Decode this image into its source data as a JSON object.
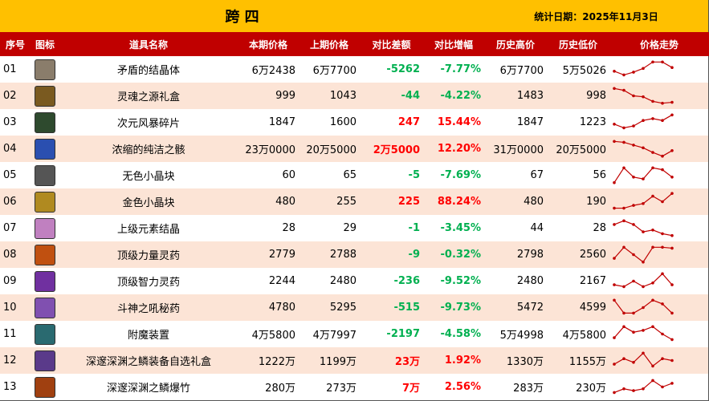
{
  "header": {
    "title": "跨 四",
    "date": "统计日期：2025年11月3日"
  },
  "table": {
    "columns": [
      "序号",
      "图标",
      "道具名称",
      "本期价格",
      "上期价格",
      "对比差额",
      "对比增幅",
      "历史高价",
      "历史低价",
      "价格走势"
    ],
    "rows": [
      [
        "01",
        "矛盾的结晶体",
        "6万2438",
        "6万7700",
        "-5262",
        "-7.77%",
        "6万7700",
        "5万5026"
      ],
      [
        "02",
        "灵魂之源礼盒",
        "999",
        "1043",
        "-44",
        "-4.22%",
        "1483",
        "998"
      ],
      [
        "03",
        "次元风暴碎片",
        "1847",
        "1600",
        "247",
        "15.44%",
        "1847",
        "1223"
      ],
      [
        "04",
        "浓缩的纯洁之骸",
        "23万0000",
        "20万5000",
        "2万5000",
        "12.20%",
        "31万0000",
        "20万5000"
      ],
      [
        "05",
        "无色小晶块",
        "60",
        "65",
        "-5",
        "-7.69%",
        "67",
        "56"
      ],
      [
        "06",
        "金色小晶块",
        "480",
        "255",
        "225",
        "88.24%",
        "480",
        "190"
      ],
      [
        "07",
        "上级元素结晶",
        "28",
        "29",
        "-1",
        "-3.45%",
        "44",
        "28"
      ],
      [
        "08",
        "顶级力量灵药",
        "2779",
        "2788",
        "-9",
        "-0.32%",
        "2798",
        "2560"
      ],
      [
        "09",
        "顶级智力灵药",
        "2244",
        "2480",
        "-236",
        "-9.52%",
        "2480",
        "2167"
      ],
      [
        "10",
        "斗神之吼秘药",
        "4780",
        "5295",
        "-515",
        "-9.73%",
        "5472",
        "4599"
      ],
      [
        "11",
        "附魔装置",
        "4万5800",
        "4万7997",
        "-2197",
        "-4.58%",
        "5万4998",
        "4万5800"
      ],
      [
        "12",
        "深邃深渊之鳞装备自选礼盒",
        "1222万",
        "1199万",
        "23万",
        "1.92%",
        "1330万",
        "1155万"
      ],
      [
        "13",
        "深邃深渊之鳞爆竹",
        "280万",
        "273万",
        "7万",
        "2.56%",
        "283万",
        "230万"
      ]
    ]
  }
}
